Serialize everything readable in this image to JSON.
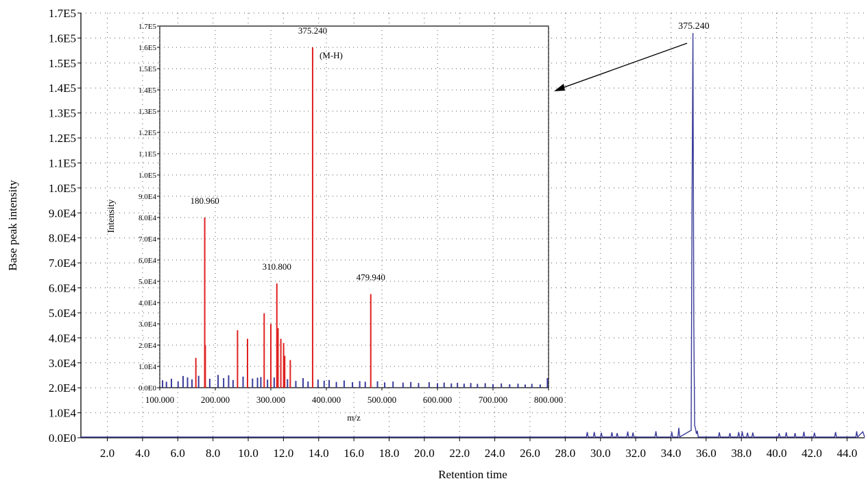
{
  "chart_data": [
    {
      "type": "line",
      "title": "",
      "xlabel": "Retention time",
      "ylabel": "Base peak intensity",
      "xlim": [
        0.5,
        45.0
      ],
      "ylim": [
        0,
        170000
      ],
      "grid": true,
      "x_ticks": [
        2.0,
        4.0,
        6.0,
        8.0,
        10.0,
        12.0,
        14.0,
        16.0,
        18.0,
        20.0,
        22.0,
        24.0,
        26.0,
        28.0,
        30.0,
        32.0,
        34.0,
        36.0,
        38.0,
        40.0,
        42.0,
        44.0
      ],
      "x_tick_labels": [
        "2.0",
        "4.0",
        "6.0",
        "8.0",
        "10.0",
        "12.0",
        "14.0",
        "16.0",
        "18.0",
        "20.0",
        "22.0",
        "24.0",
        "26.0",
        "28.0",
        "30.0",
        "32.0",
        "34.0",
        "36.0",
        "38.0",
        "40.0",
        "42.0",
        "44.0"
      ],
      "y_ticks": [
        0,
        10000,
        20000,
        30000,
        40000,
        50000,
        60000,
        70000,
        80000,
        90000,
        100000,
        110000,
        120000,
        130000,
        140000,
        150000,
        160000,
        170000
      ],
      "y_tick_labels": [
        "0.0E0",
        "1.0E4",
        "2.0E4",
        "3.0E4",
        "4.0E4",
        "5.0E4",
        "6.0E4",
        "7.0E4",
        "8.0E4",
        "9.0E4",
        "1.0E5",
        "1.1E5",
        "1.2E5",
        "1.3E5",
        "1.4E5",
        "1.5E5",
        "1.6E5",
        "1.7E5"
      ],
      "series": [
        {
          "color": "#3a3a9a",
          "x": [
            0.5,
            29.2,
            29.25,
            29.3,
            29.6,
            29.65,
            29.7,
            30.0,
            30.05,
            30.1,
            30.6,
            30.65,
            30.7,
            30.9,
            30.95,
            31.0,
            31.5,
            31.55,
            31.6,
            31.8,
            31.85,
            31.9,
            33.1,
            33.15,
            33.2,
            34.0,
            34.05,
            34.1,
            34.4,
            34.45,
            34.5,
            35.15,
            35.2,
            35.25,
            35.3,
            35.35,
            35.4,
            35.45,
            35.5,
            35.55,
            36.7,
            36.75,
            36.8,
            37.3,
            37.35,
            37.4,
            37.8,
            37.85,
            37.9,
            38.0,
            38.05,
            38.1,
            38.3,
            38.35,
            38.4,
            38.6,
            38.65,
            38.7,
            40.1,
            40.15,
            40.2,
            40.5,
            40.55,
            40.6,
            41.0,
            41.05,
            41.1,
            41.5,
            41.55,
            41.6,
            42.1,
            42.15,
            42.2,
            43.3,
            43.35,
            43.4,
            44.5,
            44.55,
            44.6,
            44.9,
            45.0
          ],
          "y": [
            300,
            300,
            2300,
            300,
            300,
            2300,
            300,
            300,
            2000,
            300,
            300,
            2200,
            300,
            300,
            1900,
            300,
            300,
            2500,
            300,
            300,
            2100,
            300,
            300,
            2600,
            300,
            300,
            2400,
            300,
            300,
            4000,
            300,
            3000,
            94000,
            162000,
            45000,
            5000,
            3600,
            1500,
            2800,
            300,
            300,
            2200,
            300,
            300,
            1900,
            300,
            300,
            2300,
            300,
            300,
            2500,
            300,
            300,
            2000,
            300,
            300,
            2100,
            300,
            300,
            1800,
            300,
            300,
            2200,
            300,
            300,
            1900,
            300,
            300,
            2400,
            300,
            300,
            2000,
            300,
            300,
            2300,
            300,
            300,
            2600,
            300,
            2400,
            300
          ]
        }
      ],
      "annotations": [
        {
          "text": "375.240",
          "x": 35.3,
          "y": 162000
        }
      ]
    },
    {
      "type": "bar",
      "title": "",
      "xlabel": "m/z",
      "ylabel": "Intensity",
      "xlim": [
        100,
        800
      ],
      "ylim": [
        0,
        170000
      ],
      "grid": true,
      "x_ticks": [
        100,
        200,
        300,
        400,
        500,
        600,
        700,
        800
      ],
      "x_tick_labels": [
        "100.000",
        "200.000",
        "300.000",
        "400.000",
        "500.000",
        "600.000",
        "700.000",
        "800.000"
      ],
      "y_ticks": [
        0,
        10000,
        20000,
        30000,
        40000,
        50000,
        60000,
        70000,
        80000,
        90000,
        100000,
        110000,
        120000,
        130000,
        140000,
        150000,
        160000,
        170000
      ],
      "y_tick_labels": [
        "0.0E0",
        "1.0E4",
        "2.0E4",
        "3.0E4",
        "4.0E4",
        "5.0E4",
        "6.0E4",
        "7.0E4",
        "8.0E4",
        "9.0E4",
        "1.0E5",
        "1.1E5",
        "1.2E5",
        "1.3E5",
        "1.4E5",
        "1.5E5",
        "1.6E5",
        "1.7E5"
      ],
      "series": [
        {
          "color": "#e02020",
          "x": [
            165,
            180.96,
            182,
            240,
            258,
            288,
            300,
            310.8,
            313,
            318,
            323,
            325,
            335,
            375.24,
            479.94
          ],
          "y": [
            14000,
            80000,
            20000,
            27000,
            23000,
            35000,
            30000,
            49000,
            28000,
            23000,
            21000,
            15000,
            13000,
            160000,
            44000
          ]
        },
        {
          "color": "#3a3a9a",
          "x": [
            105,
            112,
            121,
            133,
            142,
            150,
            158,
            170,
            190,
            205,
            215,
            224,
            232,
            250,
            267,
            276,
            282,
            294,
            306,
            330,
            345,
            358,
            367,
            385,
            396,
            405,
            418,
            432,
            447,
            460,
            470,
            492,
            505,
            520,
            538,
            552,
            566,
            585,
            600,
            612,
            625,
            636,
            648,
            660,
            672,
            686,
            700,
            715,
            730,
            745,
            758,
            770,
            785,
            798
          ],
          "y": [
            3500,
            2800,
            4200,
            3000,
            5500,
            4800,
            3900,
            5600,
            4200,
            6000,
            4500,
            5800,
            3600,
            5200,
            4300,
            4700,
            5000,
            3800,
            4800,
            4000,
            3200,
            4500,
            2900,
            3800,
            3300,
            3600,
            2700,
            3400,
            2600,
            3100,
            2800,
            3000,
            2500,
            2900,
            2400,
            2700,
            2200,
            2600,
            2100,
            2400,
            2000,
            2300,
            1900,
            2200,
            1800,
            2100,
            1700,
            2000,
            1600,
            1900,
            1500,
            1800,
            1500,
            4500
          ]
        }
      ],
      "annotations": [
        {
          "text": "375.240",
          "x": 375.24,
          "y": 160000
        },
        {
          "text": "(M-H)",
          "x": 375.24,
          "y": 160000,
          "color": "#e02020"
        },
        {
          "text": "180.960",
          "x": 180.96,
          "y": 80000
        },
        {
          "text": "310.800",
          "x": 310.8,
          "y": 49000
        },
        {
          "text": "479.940",
          "x": 479.94,
          "y": 44000
        }
      ]
    }
  ]
}
